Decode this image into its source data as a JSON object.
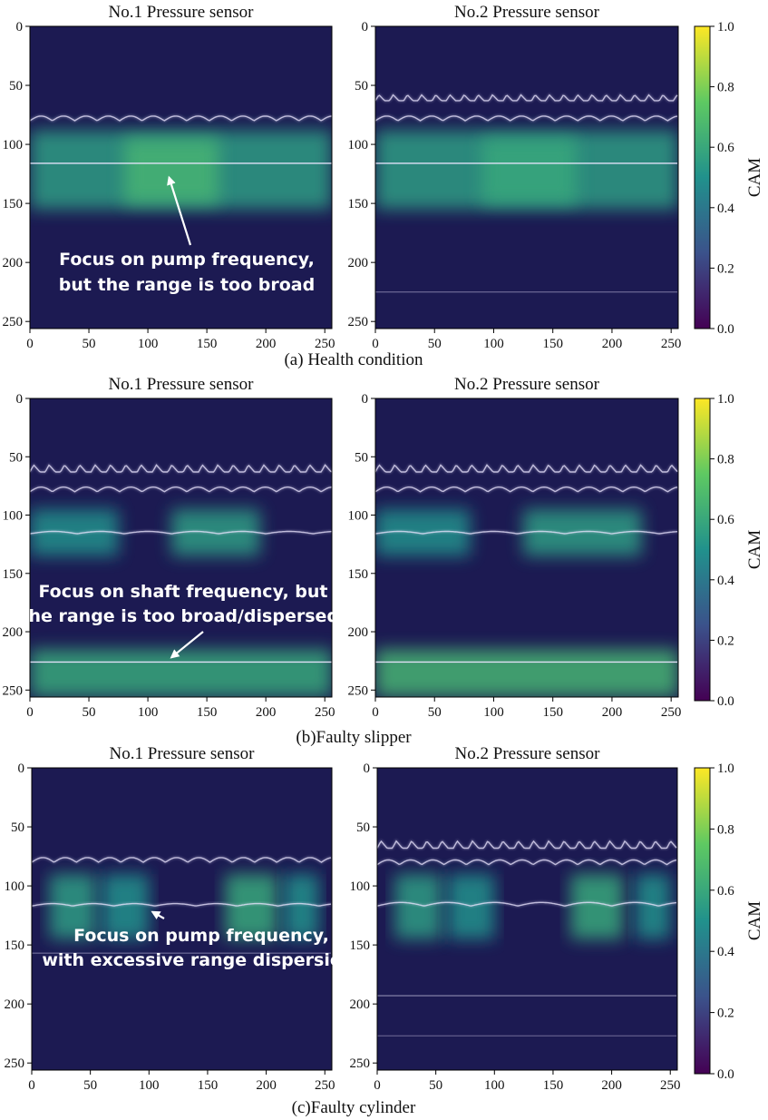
{
  "chart_data": [
    {
      "type": "heatmap",
      "caption": "(a) Health condition",
      "panels": [
        {
          "title": "No.1 Pressure sensor",
          "xlim": [
            0,
            256
          ],
          "ylim": [
            256,
            0
          ],
          "xticks": [
            "0",
            "50",
            "100",
            "150",
            "200",
            "250"
          ],
          "yticks": [
            "0",
            "50",
            "100",
            "150",
            "200",
            "250"
          ],
          "bands": [
            {
              "y0": 88,
              "y1": 155,
              "x0": 0,
              "x1": 256,
              "intensity": 0.55
            },
            {
              "y0": 95,
              "y1": 150,
              "x0": 80,
              "x1": 160,
              "intensity": 0.65
            }
          ],
          "ridge_lines": [
            {
              "y": 80,
              "kind": "wavy",
              "amplitude": 4,
              "period": 19
            },
            {
              "y": 116,
              "kind": "straight",
              "brightness": 0.95
            }
          ],
          "annotation": {
            "text_lines": [
              "Focus on pump frequency,",
              "but the range is too broad"
            ],
            "arrow_target": [
              118,
              128
            ]
          }
        },
        {
          "title": "No.2 Pressure sensor",
          "xlim": [
            0,
            256
          ],
          "ylim": [
            256,
            0
          ],
          "xticks": [
            "0",
            "50",
            "100",
            "150",
            "200",
            "250"
          ],
          "yticks": [
            "0",
            "50",
            "100",
            "150",
            "200",
            "250"
          ],
          "bands": [
            {
              "y0": 88,
              "y1": 155,
              "x0": 0,
              "x1": 256,
              "intensity": 0.55
            },
            {
              "y0": 95,
              "y1": 150,
              "x0": 90,
              "x1": 170,
              "intensity": 0.6
            }
          ],
          "ridge_lines": [
            {
              "y": 63,
              "kind": "spiky",
              "amplitude": 5,
              "period": 12
            },
            {
              "y": 80,
              "kind": "wavy",
              "amplitude": 4,
              "period": 19
            },
            {
              "y": 116,
              "kind": "straight",
              "brightness": 0.95
            },
            {
              "y": 225,
              "kind": "straight",
              "brightness": 0.35
            }
          ]
        }
      ],
      "colorbar": {
        "label": "CAM",
        "min": 0.0,
        "max": 1.0,
        "ticks": [
          "0.0",
          "0.2",
          "0.4",
          "0.6",
          "0.8",
          "1.0"
        ]
      }
    },
    {
      "type": "heatmap",
      "caption": "(b)Faulty slipper",
      "panels": [
        {
          "title": "No.1 Pressure sensor",
          "xlim": [
            0,
            256
          ],
          "ylim": [
            256,
            0
          ],
          "xticks": [
            "0",
            "50",
            "100",
            "150",
            "200",
            "250"
          ],
          "yticks": [
            "0",
            "50",
            "100",
            "150",
            "200",
            "250"
          ],
          "bands": [
            {
              "y0": 95,
              "y1": 135,
              "x0": 0,
              "x1": 75,
              "intensity": 0.5
            },
            {
              "y0": 95,
              "y1": 135,
              "x0": 120,
              "x1": 195,
              "intensity": 0.55
            },
            {
              "y0": 215,
              "y1": 256,
              "x0": 0,
              "x1": 256,
              "intensity": 0.6
            }
          ],
          "ridge_lines": [
            {
              "y": 63,
              "kind": "spiky",
              "amplitude": 6,
              "period": 13
            },
            {
              "y": 80,
              "kind": "wavy",
              "amplitude": 4,
              "period": 19
            },
            {
              "y": 116,
              "kind": "wavy",
              "amplitude": 2,
              "period": 40
            },
            {
              "y": 226,
              "kind": "straight",
              "brightness": 0.95
            }
          ],
          "annotation": {
            "text_lines": [
              "Focus on shaft frequency, but",
              "the range is too broad/dispersed;"
            ],
            "arrow_target": [
              120,
              222
            ]
          }
        },
        {
          "title": "No.2 Pressure sensor",
          "xlim": [
            0,
            256
          ],
          "ylim": [
            256,
            0
          ],
          "xticks": [
            "0",
            "50",
            "100",
            "150",
            "200",
            "250"
          ],
          "yticks": [
            "0",
            "50",
            "100",
            "150",
            "200",
            "250"
          ],
          "bands": [
            {
              "y0": 95,
              "y1": 135,
              "x0": 0,
              "x1": 80,
              "intensity": 0.5
            },
            {
              "y0": 95,
              "y1": 135,
              "x0": 125,
              "x1": 225,
              "intensity": 0.55
            },
            {
              "y0": 215,
              "y1": 256,
              "x0": 0,
              "x1": 256,
              "intensity": 0.65
            }
          ],
          "ridge_lines": [
            {
              "y": 63,
              "kind": "spiky",
              "amplitude": 6,
              "period": 13
            },
            {
              "y": 80,
              "kind": "wavy",
              "amplitude": 4,
              "period": 19
            },
            {
              "y": 116,
              "kind": "wavy",
              "amplitude": 2,
              "period": 40
            },
            {
              "y": 226,
              "kind": "straight",
              "brightness": 0.95
            }
          ]
        }
      ],
      "colorbar": {
        "label": "CAM",
        "min": 0.0,
        "max": 1.0,
        "ticks": [
          "0.0",
          "0.2",
          "0.4",
          "0.6",
          "0.8",
          "1.0"
        ]
      }
    },
    {
      "type": "heatmap",
      "caption": "(c)Faulty cylinder",
      "panels": [
        {
          "title": "No.1 Pressure sensor",
          "xlim": [
            0,
            256
          ],
          "ylim": [
            256,
            0
          ],
          "xticks": [
            "0",
            "50",
            "100",
            "150",
            "200",
            "250"
          ],
          "yticks": [
            "0",
            "50",
            "100",
            "150",
            "200",
            "250"
          ],
          "bands": [
            {
              "y0": 90,
              "y1": 145,
              "x0": 15,
              "x1": 55,
              "intensity": 0.55
            },
            {
              "y0": 90,
              "y1": 145,
              "x0": 60,
              "x1": 100,
              "intensity": 0.5
            },
            {
              "y0": 90,
              "y1": 145,
              "x0": 165,
              "x1": 210,
              "intensity": 0.6
            },
            {
              "y0": 90,
              "y1": 145,
              "x0": 215,
              "x1": 245,
              "intensity": 0.5
            }
          ],
          "ridge_lines": [
            {
              "y": 80,
              "kind": "wavy",
              "amplitude": 4,
              "period": 19
            },
            {
              "y": 117,
              "kind": "wavy",
              "amplitude": 2,
              "period": 35
            },
            {
              "y": 157,
              "kind": "straight",
              "brightness": 0.35
            }
          ],
          "annotation": {
            "text_lines": [
              "Focus on pump frequency,",
              "with excessive range dispersion."
            ],
            "arrow_target": [
              103,
              122
            ]
          }
        },
        {
          "title": "No.2 Pressure sensor",
          "xlim": [
            0,
            256
          ],
          "ylim": [
            256,
            0
          ],
          "xticks": [
            "0",
            "50",
            "100",
            "150",
            "200",
            "250"
          ],
          "yticks": [
            "0",
            "50",
            "100",
            "150",
            "200",
            "250"
          ],
          "bands": [
            {
              "y0": 90,
              "y1": 145,
              "x0": 15,
              "x1": 55,
              "intensity": 0.55
            },
            {
              "y0": 90,
              "y1": 145,
              "x0": 60,
              "x1": 100,
              "intensity": 0.5
            },
            {
              "y0": 90,
              "y1": 145,
              "x0": 165,
              "x1": 210,
              "intensity": 0.6
            },
            {
              "y0": 90,
              "y1": 145,
              "x0": 220,
              "x1": 250,
              "intensity": 0.5
            }
          ],
          "ridge_lines": [
            {
              "y": 68,
              "kind": "spiky",
              "amplitude": 6,
              "period": 13
            },
            {
              "y": 82,
              "kind": "wavy",
              "amplitude": 4,
              "period": 19
            },
            {
              "y": 117,
              "kind": "wavy",
              "amplitude": 3,
              "period": 40
            },
            {
              "y": 193,
              "kind": "straight",
              "brightness": 0.45
            },
            {
              "y": 227,
              "kind": "straight",
              "brightness": 0.3
            }
          ]
        }
      ],
      "colorbar": {
        "label": "CAM",
        "min": 0.0,
        "max": 1.0,
        "ticks": [
          "0.0",
          "0.2",
          "0.4",
          "0.6",
          "0.8",
          "1.0"
        ]
      }
    }
  ]
}
